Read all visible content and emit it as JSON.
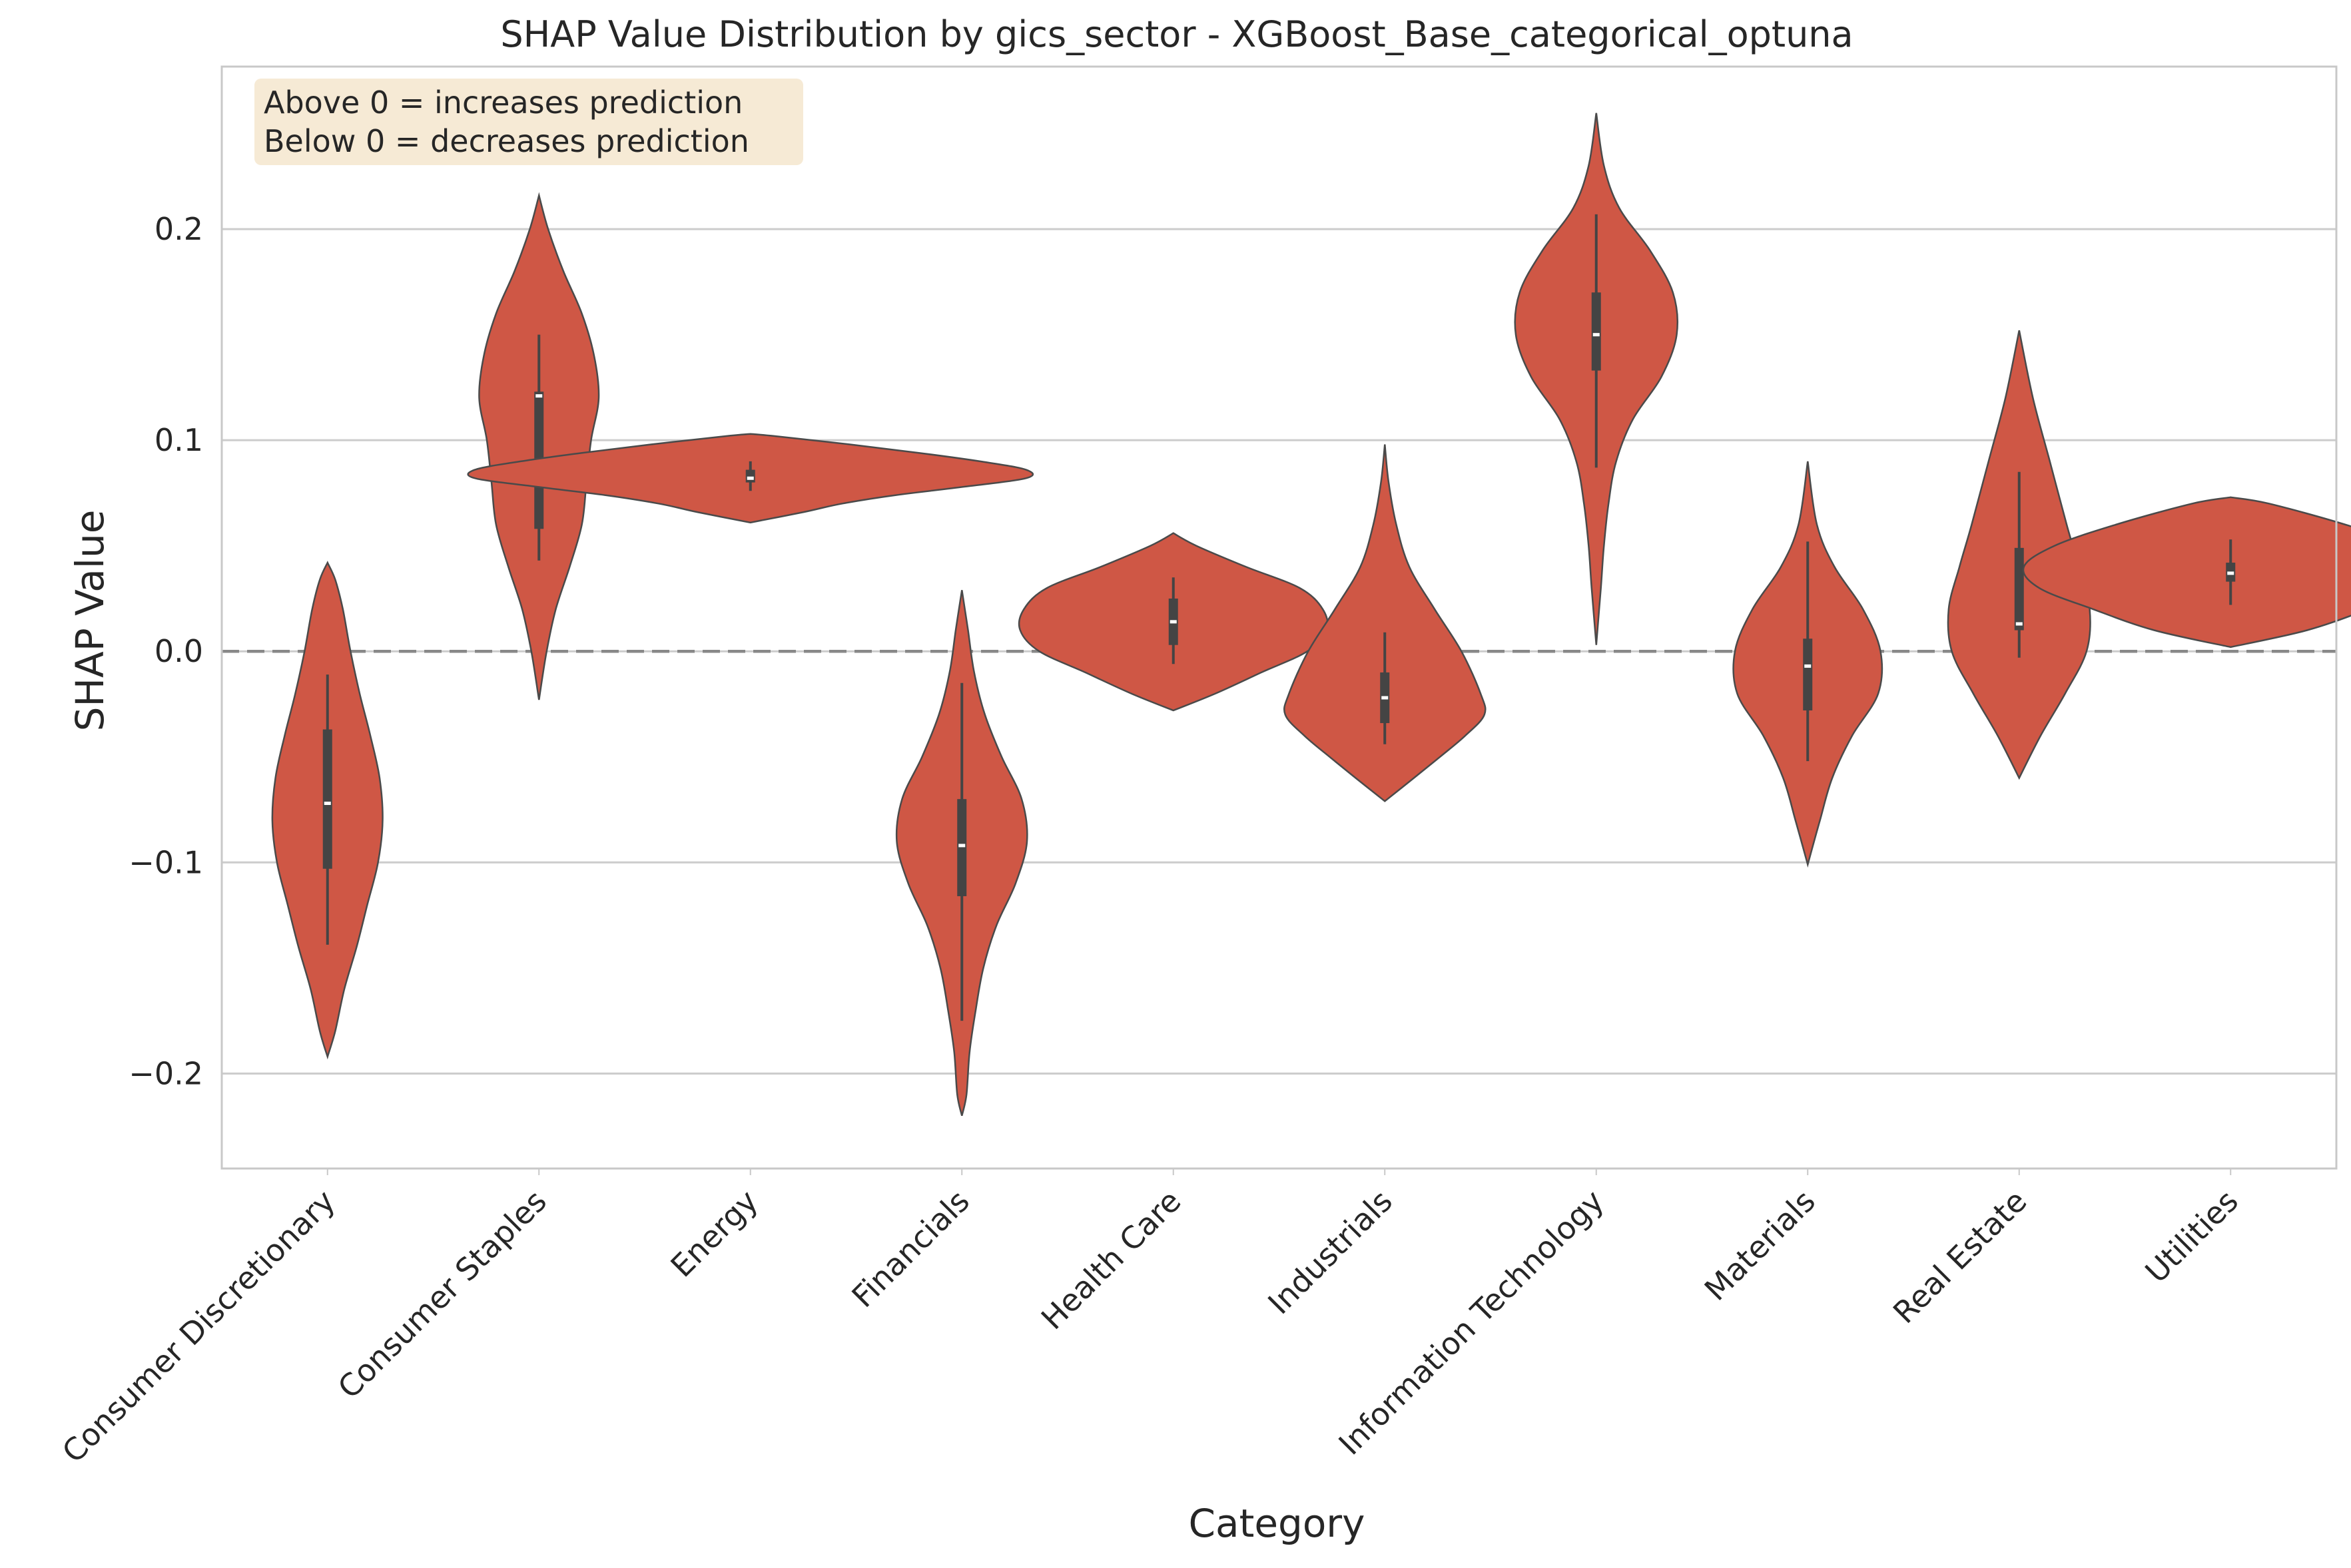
{
  "chart_data": {
    "type": "violin",
    "title": "SHAP Value Distribution by gics_sector - XGBoost_Base_categorical_optuna",
    "xlabel": "Category",
    "ylabel": "SHAP Value",
    "ylim": [
      -0.245,
      0.277
    ],
    "yticks": [
      -0.2,
      -0.1,
      0.0,
      0.1,
      0.2
    ],
    "ytick_labels": [
      "−0.2",
      "−0.1",
      "0.0",
      "0.1",
      "0.2"
    ],
    "grid": true,
    "reference_line": {
      "y": 0.0,
      "style": "dashed"
    },
    "annotation": [
      "Above 0 = increases prediction",
      "Below 0 = decreases prediction"
    ],
    "annotation_position": "top-left",
    "colors": {
      "violin_fill": "#cf5745",
      "violin_edge": "#4a4a4a",
      "box": "#444444",
      "median": "#ffffff",
      "grid": "#cccccc",
      "reference_line": "#888888",
      "annotation_bg": "#f6ead5",
      "axes_edge": "#c8c8c8"
    },
    "categories": [
      "Consumer Discretionary",
      "Consumer Staples",
      "Energy",
      "Financials",
      "Health Care",
      "Industrials",
      "Information Technology",
      "Materials",
      "Real Estate",
      "Utilities"
    ],
    "violins": [
      {
        "category": "Consumer Discretionary",
        "min": -0.192,
        "max": 0.042,
        "q1": -0.103,
        "median": -0.072,
        "q3": -0.037,
        "whisker_low": -0.139,
        "whisker_high": -0.011,
        "profile": [
          [
            0.042,
            0.0
          ],
          [
            0.034,
            0.1
          ],
          [
            0.02,
            0.2
          ],
          [
            0.0,
            0.3
          ],
          [
            -0.02,
            0.42
          ],
          [
            -0.04,
            0.56
          ],
          [
            -0.06,
            0.68
          ],
          [
            -0.08,
            0.72
          ],
          [
            -0.1,
            0.66
          ],
          [
            -0.12,
            0.52
          ],
          [
            -0.14,
            0.38
          ],
          [
            -0.16,
            0.22
          ],
          [
            -0.18,
            0.1
          ],
          [
            -0.192,
            0.0
          ]
        ]
      },
      {
        "category": "Consumer Staples",
        "min": -0.023,
        "max": 0.216,
        "q1": 0.058,
        "median": 0.121,
        "q3": 0.123,
        "whisker_low": 0.043,
        "whisker_high": 0.15,
        "profile": [
          [
            0.216,
            0.0
          ],
          [
            0.2,
            0.12
          ],
          [
            0.18,
            0.32
          ],
          [
            0.16,
            0.56
          ],
          [
            0.14,
            0.72
          ],
          [
            0.12,
            0.78
          ],
          [
            0.1,
            0.68
          ],
          [
            0.08,
            0.62
          ],
          [
            0.06,
            0.56
          ],
          [
            0.04,
            0.4
          ],
          [
            0.02,
            0.22
          ],
          [
            0.0,
            0.1
          ],
          [
            -0.023,
            0.0
          ]
        ]
      },
      {
        "category": "Energy",
        "min": 0.061,
        "max": 0.103,
        "q1": 0.08,
        "median": 0.082,
        "q3": 0.086,
        "whisker_low": 0.076,
        "whisker_high": 0.09,
        "profile": [
          [
            0.103,
            0.0
          ],
          [
            0.102,
            0.3
          ],
          [
            0.098,
            1.3
          ],
          [
            0.094,
            2.2
          ],
          [
            0.09,
            3.0
          ],
          [
            0.086,
            3.6
          ],
          [
            0.082,
            3.6
          ],
          [
            0.078,
            2.8
          ],
          [
            0.074,
            1.9
          ],
          [
            0.07,
            1.2
          ],
          [
            0.066,
            0.7
          ],
          [
            0.061,
            0.0
          ]
        ]
      },
      {
        "category": "Financials",
        "min": -0.22,
        "max": 0.029,
        "q1": -0.116,
        "median": -0.092,
        "q3": -0.07,
        "whisker_low": -0.175,
        "whisker_high": -0.015,
        "profile": [
          [
            0.029,
            0.0
          ],
          [
            0.01,
            0.08
          ],
          [
            -0.01,
            0.16
          ],
          [
            -0.03,
            0.3
          ],
          [
            -0.05,
            0.52
          ],
          [
            -0.07,
            0.78
          ],
          [
            -0.09,
            0.85
          ],
          [
            -0.11,
            0.7
          ],
          [
            -0.13,
            0.45
          ],
          [
            -0.15,
            0.28
          ],
          [
            -0.17,
            0.18
          ],
          [
            -0.19,
            0.1
          ],
          [
            -0.21,
            0.06
          ],
          [
            -0.22,
            0.0
          ]
        ]
      },
      {
        "category": "Health Care",
        "min": -0.028,
        "max": 0.056,
        "q1": 0.003,
        "median": 0.014,
        "q3": 0.025,
        "whisker_low": -0.006,
        "whisker_high": 0.035,
        "profile": [
          [
            0.056,
            0.0
          ],
          [
            0.05,
            0.3
          ],
          [
            0.04,
            0.95
          ],
          [
            0.03,
            1.65
          ],
          [
            0.02,
            1.95
          ],
          [
            0.01,
            2.0
          ],
          [
            0.0,
            1.75
          ],
          [
            -0.01,
            1.15
          ],
          [
            -0.02,
            0.55
          ],
          [
            -0.028,
            0.0
          ]
        ]
      },
      {
        "category": "Industrials",
        "min": -0.071,
        "max": 0.098,
        "q1": -0.034,
        "median": -0.022,
        "q3": -0.01,
        "whisker_low": -0.044,
        "whisker_high": 0.009,
        "profile": [
          [
            0.098,
            0.0
          ],
          [
            0.08,
            0.05
          ],
          [
            0.06,
            0.15
          ],
          [
            0.04,
            0.32
          ],
          [
            0.02,
            0.65
          ],
          [
            0.0,
            1.0
          ],
          [
            -0.02,
            1.25
          ],
          [
            -0.03,
            1.3
          ],
          [
            -0.04,
            1.05
          ],
          [
            -0.05,
            0.72
          ],
          [
            -0.06,
            0.38
          ],
          [
            -0.071,
            0.0
          ]
        ]
      },
      {
        "category": "Information Technology",
        "min": 0.003,
        "max": 0.255,
        "q1": 0.133,
        "median": 0.15,
        "q3": 0.17,
        "whisker_low": 0.087,
        "whisker_high": 0.207,
        "profile": [
          [
            0.255,
            0.0
          ],
          [
            0.23,
            0.1
          ],
          [
            0.21,
            0.3
          ],
          [
            0.19,
            0.7
          ],
          [
            0.17,
            1.0
          ],
          [
            0.15,
            1.05
          ],
          [
            0.13,
            0.85
          ],
          [
            0.11,
            0.48
          ],
          [
            0.09,
            0.26
          ],
          [
            0.07,
            0.16
          ],
          [
            0.05,
            0.1
          ],
          [
            0.03,
            0.06
          ],
          [
            0.003,
            0.0
          ]
        ]
      },
      {
        "category": "Materials",
        "min": -0.101,
        "max": 0.09,
        "q1": -0.028,
        "median": -0.007,
        "q3": 0.006,
        "whisker_low": -0.052,
        "whisker_high": 0.052,
        "profile": [
          [
            0.09,
            0.0
          ],
          [
            0.06,
            0.12
          ],
          [
            0.04,
            0.35
          ],
          [
            0.02,
            0.72
          ],
          [
            0.0,
            0.95
          ],
          [
            -0.02,
            0.92
          ],
          [
            -0.04,
            0.58
          ],
          [
            -0.06,
            0.32
          ],
          [
            -0.08,
            0.16
          ],
          [
            -0.101,
            0.0
          ]
        ]
      },
      {
        "category": "Real Estate",
        "min": -0.06,
        "max": 0.152,
        "q1": 0.01,
        "median": 0.013,
        "q3": 0.049,
        "whisker_low": -0.003,
        "whisker_high": 0.085,
        "profile": [
          [
            0.152,
            0.0
          ],
          [
            0.12,
            0.18
          ],
          [
            0.09,
            0.4
          ],
          [
            0.06,
            0.62
          ],
          [
            0.04,
            0.78
          ],
          [
            0.02,
            0.92
          ],
          [
            0.0,
            0.88
          ],
          [
            -0.02,
            0.6
          ],
          [
            -0.04,
            0.28
          ],
          [
            -0.06,
            0.0
          ]
        ]
      },
      {
        "category": "Utilities",
        "min": 0.002,
        "max": 0.073,
        "q1": 0.033,
        "median": 0.037,
        "q3": 0.042,
        "whisker_low": 0.022,
        "whisker_high": 0.053,
        "profile": [
          [
            0.073,
            0.0
          ],
          [
            0.07,
            0.5
          ],
          [
            0.06,
            1.5
          ],
          [
            0.05,
            2.3
          ],
          [
            0.04,
            2.7
          ],
          [
            0.03,
            2.5
          ],
          [
            0.02,
            1.8
          ],
          [
            0.01,
            1.0
          ],
          [
            0.002,
            0.0
          ]
        ]
      }
    ]
  }
}
